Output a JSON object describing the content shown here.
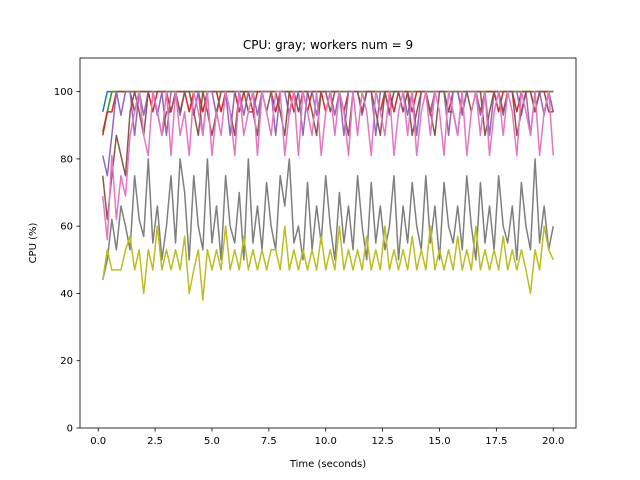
{
  "chart_data": {
    "type": "line",
    "title": "CPU: gray; workers num = 9",
    "xlabel": "Time (seconds)",
    "ylabel": "CPU (%)",
    "xlim": [
      -0.8,
      21.0
    ],
    "ylim": [
      0,
      110
    ],
    "xticks": [
      0.0,
      2.5,
      5.0,
      7.5,
      10.0,
      12.5,
      15.0,
      17.5,
      20.0
    ],
    "xtick_labels": [
      "0.0",
      "2.5",
      "5.0",
      "7.5",
      "10.0",
      "12.5",
      "15.0",
      "17.5",
      "20.0"
    ],
    "yticks": [
      0,
      20,
      40,
      60,
      80,
      100
    ],
    "ytick_labels": [
      "0",
      "20",
      "40",
      "60",
      "80",
      "100"
    ],
    "grid": false,
    "legend": "none",
    "x": [
      0.2,
      0.4,
      0.6,
      0.8,
      1.0,
      1.2,
      1.4,
      1.6,
      1.8,
      2.0,
      2.2,
      2.4,
      2.6,
      2.8,
      3.0,
      3.2,
      3.4,
      3.6,
      3.8,
      4.0,
      4.2,
      4.4,
      4.6,
      4.8,
      5.0,
      5.2,
      5.4,
      5.6,
      5.8,
      6.0,
      6.2,
      6.4,
      6.6,
      6.8,
      7.0,
      7.2,
      7.4,
      7.6,
      7.8,
      8.0,
      8.2,
      8.4,
      8.6,
      8.8,
      9.0,
      9.2,
      9.4,
      9.6,
      9.8,
      10.0,
      10.2,
      10.4,
      10.6,
      10.8,
      11.0,
      11.2,
      11.4,
      11.6,
      11.8,
      12.0,
      12.2,
      12.4,
      12.6,
      12.8,
      13.0,
      13.2,
      13.4,
      13.6,
      13.8,
      14.0,
      14.2,
      14.4,
      14.6,
      14.8,
      15.0,
      15.2,
      15.4,
      15.6,
      15.8,
      16.0,
      16.2,
      16.4,
      16.6,
      16.8,
      17.0,
      17.2,
      17.4,
      17.6,
      17.8,
      18.0,
      18.2,
      18.4,
      18.6,
      18.8,
      19.0,
      19.2,
      19.4,
      19.6,
      19.8,
      20.0
    ],
    "series": [
      {
        "color": "#1f77b4",
        "values": [
          94,
          100,
          100,
          100,
          100,
          100,
          100,
          100,
          100,
          100,
          100,
          100,
          100,
          100,
          100,
          100,
          100,
          100,
          100,
          100,
          100,
          100,
          100,
          100,
          100,
          100,
          100,
          100,
          100,
          100,
          100,
          100,
          100,
          100,
          100,
          100,
          100,
          100,
          100,
          100,
          100,
          100,
          100,
          100,
          100,
          100,
          100,
          100,
          100,
          100,
          100,
          100,
          100,
          100,
          100,
          100,
          100,
          100,
          100,
          100,
          100,
          100,
          100,
          100,
          100,
          100,
          100,
          100,
          100,
          100,
          100,
          100,
          100,
          100,
          100,
          100,
          100,
          100,
          100,
          100,
          100,
          100,
          100,
          100,
          100,
          100,
          100,
          100,
          100,
          100,
          100,
          100,
          100,
          100,
          100,
          100,
          100,
          100,
          100,
          100
        ]
      },
      {
        "color": "#ff7f0e",
        "values": [
          88,
          94,
          100,
          100,
          100,
          100,
          100,
          100,
          100,
          100,
          100,
          100,
          100,
          100,
          100,
          100,
          100,
          100,
          100,
          100,
          100,
          100,
          100,
          100,
          100,
          100,
          100,
          100,
          100,
          100,
          100,
          100,
          100,
          100,
          100,
          100,
          100,
          100,
          100,
          100,
          100,
          100,
          100,
          100,
          100,
          100,
          100,
          100,
          100,
          100,
          100,
          100,
          100,
          100,
          100,
          100,
          100,
          100,
          100,
          100,
          100,
          100,
          100,
          100,
          100,
          100,
          100,
          100,
          100,
          100,
          100,
          100,
          100,
          100,
          100,
          100,
          100,
          100,
          100,
          100,
          100,
          100,
          100,
          100,
          100,
          100,
          100,
          100,
          100,
          100,
          100,
          100,
          100,
          100,
          100,
          100,
          100,
          100,
          100,
          100
        ]
      },
      {
        "color": "#2ca02c",
        "values": [
          88,
          94,
          100,
          100,
          100,
          100,
          100,
          100,
          100,
          100,
          100,
          100,
          100,
          100,
          100,
          100,
          100,
          100,
          100,
          100,
          100,
          100,
          100,
          100,
          100,
          100,
          100,
          100,
          100,
          100,
          100,
          100,
          100,
          100,
          100,
          100,
          100,
          100,
          100,
          100,
          100,
          100,
          100,
          100,
          100,
          100,
          100,
          100,
          100,
          100,
          100,
          100,
          100,
          100,
          100,
          100,
          100,
          100,
          100,
          100,
          100,
          100,
          100,
          100,
          100,
          100,
          100,
          100,
          100,
          100,
          100,
          100,
          100,
          100,
          100,
          100,
          100,
          100,
          100,
          100,
          100,
          100,
          100,
          100,
          100,
          100,
          100,
          100,
          100,
          100,
          100,
          100,
          100,
          100,
          100,
          100,
          100,
          100,
          100,
          100
        ]
      },
      {
        "color": "#d62728",
        "values": [
          87,
          94,
          94,
          100,
          100,
          100,
          100,
          94,
          100,
          100,
          100,
          94,
          100,
          100,
          100,
          94,
          100,
          100,
          100,
          94,
          100,
          100,
          94,
          100,
          100,
          100,
          94,
          100,
          100,
          100,
          94,
          100,
          100,
          94,
          100,
          100,
          100,
          100,
          94,
          100,
          100,
          100,
          94,
          100,
          100,
          94,
          100,
          100,
          100,
          94,
          100,
          100,
          100,
          94,
          100,
          100,
          100,
          94,
          100,
          100,
          100,
          94,
          100,
          100,
          94,
          100,
          100,
          100,
          94,
          100,
          100,
          100,
          94,
          100,
          100,
          100,
          94,
          100,
          100,
          94,
          100,
          100,
          100,
          94,
          100,
          100,
          100,
          94,
          100,
          100,
          100,
          94,
          100,
          100,
          100,
          94,
          100,
          100,
          100,
          94
        ]
      },
      {
        "color": "#9467bd",
        "values": [
          81,
          75,
          87,
          100,
          93,
          100,
          100,
          87,
          100,
          93,
          100,
          100,
          93,
          100,
          87,
          100,
          100,
          93,
          100,
          100,
          93,
          100,
          87,
          100,
          100,
          93,
          100,
          100,
          87,
          100,
          100,
          93,
          100,
          100,
          93,
          100,
          100,
          100,
          87,
          100,
          100,
          93,
          100,
          100,
          87,
          100,
          100,
          93,
          100,
          100,
          100,
          93,
          100,
          87,
          100,
          100,
          100,
          93,
          100,
          100,
          87,
          100,
          100,
          93,
          100,
          100,
          100,
          93,
          100,
          87,
          100,
          100,
          93,
          100,
          100,
          100,
          87,
          100,
          100,
          93,
          100,
          100,
          100,
          93,
          100,
          87,
          100,
          100,
          93,
          100,
          100,
          100,
          93,
          100,
          87,
          100,
          100,
          93,
          100,
          94
        ]
      },
      {
        "color": "#8c564b",
        "values": [
          75,
          62,
          75,
          87,
          81,
          75,
          94,
          100,
          94,
          87,
          100,
          100,
          94,
          87,
          94,
          94,
          100,
          94,
          100,
          100,
          94,
          87,
          100,
          94,
          87,
          94,
          100,
          100,
          94,
          87,
          100,
          100,
          94,
          94,
          87,
          100,
          94,
          100,
          100,
          94,
          87,
          100,
          100,
          94,
          100,
          100,
          94,
          87,
          100,
          100,
          94,
          100,
          100,
          94,
          87,
          100,
          100,
          94,
          100,
          100,
          94,
          87,
          100,
          94,
          100,
          100,
          94,
          100,
          87,
          94,
          100,
          100,
          94,
          87,
          100,
          100,
          94,
          94,
          87,
          100,
          100,
          94,
          100,
          100,
          87,
          94,
          100,
          100,
          94,
          100,
          100,
          87,
          94,
          100,
          100,
          94,
          100,
          100,
          94,
          94
        ]
      },
      {
        "color": "#e377c2",
        "values": [
          69,
          56,
          81,
          62,
          75,
          69,
          87,
          94,
          100,
          87,
          81,
          100,
          94,
          87,
          100,
          81,
          100,
          87,
          94,
          81,
          100,
          94,
          87,
          100,
          81,
          94,
          87,
          100,
          94,
          81,
          100,
          87,
          94,
          100,
          81,
          100,
          94,
          87,
          100,
          100,
          81,
          94,
          100,
          81,
          100,
          94,
          87,
          100,
          81,
          94,
          100,
          87,
          100,
          94,
          81,
          100,
          87,
          100,
          94,
          81,
          100,
          94,
          87,
          100,
          81,
          94,
          100,
          87,
          100,
          81,
          94,
          100,
          87,
          100,
          94,
          81,
          100,
          94,
          87,
          100,
          81,
          94,
          100,
          87,
          100,
          81,
          94,
          100,
          87,
          100,
          94,
          81,
          100,
          94,
          87,
          100,
          81,
          94,
          100,
          81
        ]
      },
      {
        "color": "#7f7f7f",
        "values": [
          44,
          50,
          62,
          53,
          66,
          60,
          53,
          75,
          62,
          57,
          80,
          55,
          66,
          50,
          60,
          75,
          55,
          80,
          70,
          50,
          75,
          60,
          53,
          80,
          55,
          66,
          50,
          75,
          60,
          55,
          70,
          50,
          80,
          55,
          66,
          53,
          73,
          60,
          53,
          75,
          66,
          80,
          55,
          60,
          50,
          73,
          53,
          66,
          55,
          75,
          60,
          50,
          70,
          55,
          66,
          53,
          75,
          60,
          50,
          73,
          55,
          66,
          53,
          60,
          75,
          50,
          66,
          55,
          73,
          60,
          53,
          75,
          55,
          66,
          50,
          73,
          60,
          55,
          66,
          53,
          75,
          60,
          50,
          73,
          55,
          66,
          53,
          75,
          60,
          55,
          66,
          50,
          73,
          60,
          53,
          80,
          55,
          66,
          53,
          60
        ]
      },
      {
        "color": "#bcbd22",
        "values": [
          44,
          53,
          47,
          47,
          47,
          53,
          57,
          47,
          53,
          40,
          53,
          47,
          60,
          47,
          53,
          47,
          53,
          47,
          57,
          40,
          47,
          53,
          38,
          53,
          47,
          53,
          47,
          60,
          47,
          53,
          47,
          57,
          47,
          53,
          47,
          53,
          47,
          53,
          53,
          47,
          60,
          47,
          53,
          47,
          53,
          47,
          53,
          47,
          57,
          47,
          53,
          47,
          60,
          47,
          53,
          47,
          53,
          47,
          57,
          47,
          53,
          47,
          60,
          47,
          53,
          47,
          53,
          47,
          57,
          47,
          53,
          47,
          60,
          47,
          53,
          47,
          53,
          47,
          57,
          47,
          53,
          47,
          60,
          47,
          53,
          47,
          53,
          47,
          57,
          47,
          53,
          47,
          53,
          47,
          40,
          53,
          47,
          60,
          53,
          50
        ]
      }
    ]
  }
}
